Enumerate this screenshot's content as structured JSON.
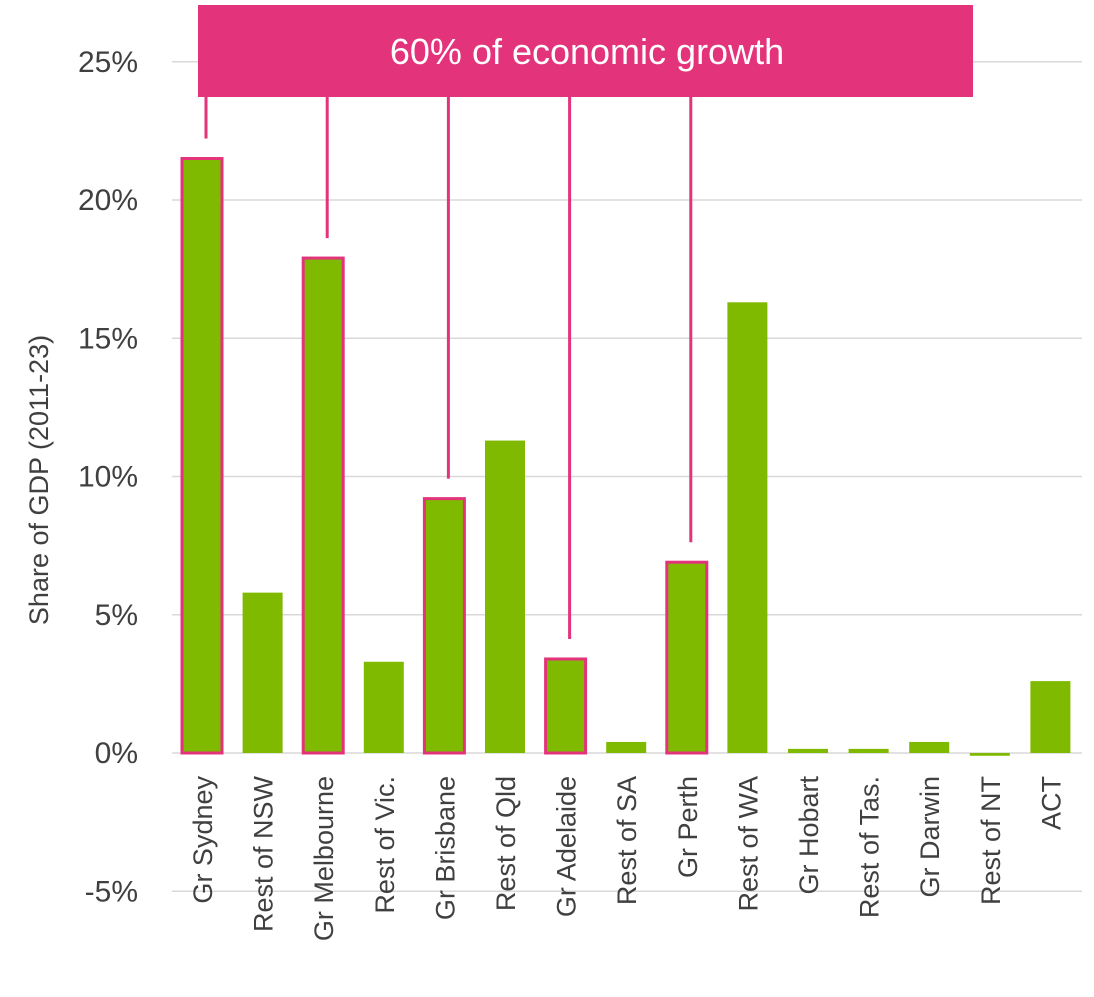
{
  "chart_data": {
    "type": "bar",
    "title": "",
    "xlabel": "",
    "ylabel": "Share of GDP (2011-23)",
    "ylim": [
      -5,
      25
    ],
    "yticks": [
      -5,
      0,
      5,
      10,
      15,
      20,
      25
    ],
    "ytick_labels": [
      "-5%",
      "0%",
      "5%",
      "10%",
      "15%",
      "20%",
      "25%"
    ],
    "grid": true,
    "categories": [
      "Gr Sydney",
      "Rest of NSW",
      "Gr Melbourne",
      "Rest of Vic.",
      "Gr Brisbane",
      "Rest of Qld",
      "Gr Adelaide",
      "Rest of SA",
      "Gr Perth",
      "Rest of WA",
      "Gr Hobart",
      "Rest of Tas.",
      "Gr Darwin",
      "Rest of NT",
      "ACT"
    ],
    "values": [
      21.5,
      5.8,
      17.9,
      3.3,
      9.2,
      11.3,
      3.4,
      0.4,
      6.9,
      16.3,
      0.15,
      0.15,
      0.4,
      -0.1,
      2.6
    ],
    "highlighted": [
      "Gr Sydney",
      "Gr Melbourne",
      "Gr Brisbane",
      "Gr Adelaide",
      "Gr Perth"
    ],
    "annotation": "60% of economic growth",
    "colors": {
      "bar": "#7FBA00",
      "highlight": "#E3337A",
      "grid": "#D9D9D9",
      "text": "#404040"
    }
  }
}
